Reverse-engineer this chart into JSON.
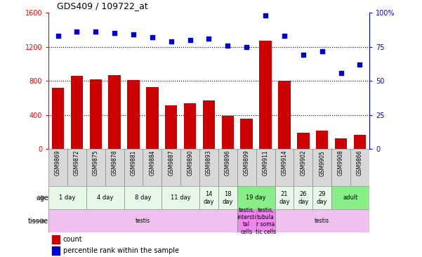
{
  "title": "GDS409 / 109722_at",
  "samples": [
    "GSM9869",
    "GSM9872",
    "GSM9875",
    "GSM9878",
    "GSM9881",
    "GSM9884",
    "GSM9887",
    "GSM9890",
    "GSM9893",
    "GSM9896",
    "GSM9899",
    "GSM9911",
    "GSM9914",
    "GSM9902",
    "GSM9905",
    "GSM9908",
    "GSM9866"
  ],
  "counts": [
    720,
    860,
    820,
    870,
    810,
    730,
    510,
    540,
    570,
    390,
    360,
    1270,
    800,
    190,
    220,
    130,
    170
  ],
  "percentiles": [
    83,
    86,
    86,
    85,
    84,
    82,
    79,
    80,
    81,
    76,
    75,
    98,
    83,
    69,
    72,
    56,
    62
  ],
  "bar_color": "#cc0000",
  "dot_color": "#0000cc",
  "age_groups": [
    {
      "label": "1 day",
      "span": [
        0,
        2
      ],
      "color": "#e8f8e8"
    },
    {
      "label": "4 day",
      "span": [
        2,
        4
      ],
      "color": "#e8f8e8"
    },
    {
      "label": "8 day",
      "span": [
        4,
        6
      ],
      "color": "#e8f8e8"
    },
    {
      "label": "11 day",
      "span": [
        6,
        8
      ],
      "color": "#e8f8e8"
    },
    {
      "label": "14\nday",
      "span": [
        8,
        9
      ],
      "color": "#e8f8e8"
    },
    {
      "label": "18\nday",
      "span": [
        9,
        10
      ],
      "color": "#e8f8e8"
    },
    {
      "label": "19 day",
      "span": [
        10,
        12
      ],
      "color": "#88ee88"
    },
    {
      "label": "21\nday",
      "span": [
        12,
        13
      ],
      "color": "#e8f8e8"
    },
    {
      "label": "26\nday",
      "span": [
        13,
        14
      ],
      "color": "#e8f8e8"
    },
    {
      "label": "29\nday",
      "span": [
        14,
        15
      ],
      "color": "#e8f8e8"
    },
    {
      "label": "adult",
      "span": [
        15,
        17
      ],
      "color": "#88ee88"
    }
  ],
  "tissue_groups": [
    {
      "label": "testis",
      "span": [
        0,
        10
      ],
      "color": "#f0c0f0"
    },
    {
      "label": "testis,\nintersti\ntal\ncells",
      "span": [
        10,
        11
      ],
      "color": "#ee88ee"
    },
    {
      "label": "testis,\ntubula\nr soma\ntic cells",
      "span": [
        11,
        12
      ],
      "color": "#ee88ee"
    },
    {
      "label": "testis",
      "span": [
        12,
        17
      ],
      "color": "#f0c0f0"
    }
  ],
  "ylim_left": [
    0,
    1600
  ],
  "ylim_right": [
    0,
    100
  ],
  "yticks_left": [
    0,
    400,
    800,
    1200,
    1600
  ],
  "yticks_right": [
    0,
    25,
    50,
    75,
    100
  ],
  "yticklabels_right": [
    "0",
    "25",
    "50",
    "75",
    "100%"
  ],
  "bg_color": "#ffffff"
}
